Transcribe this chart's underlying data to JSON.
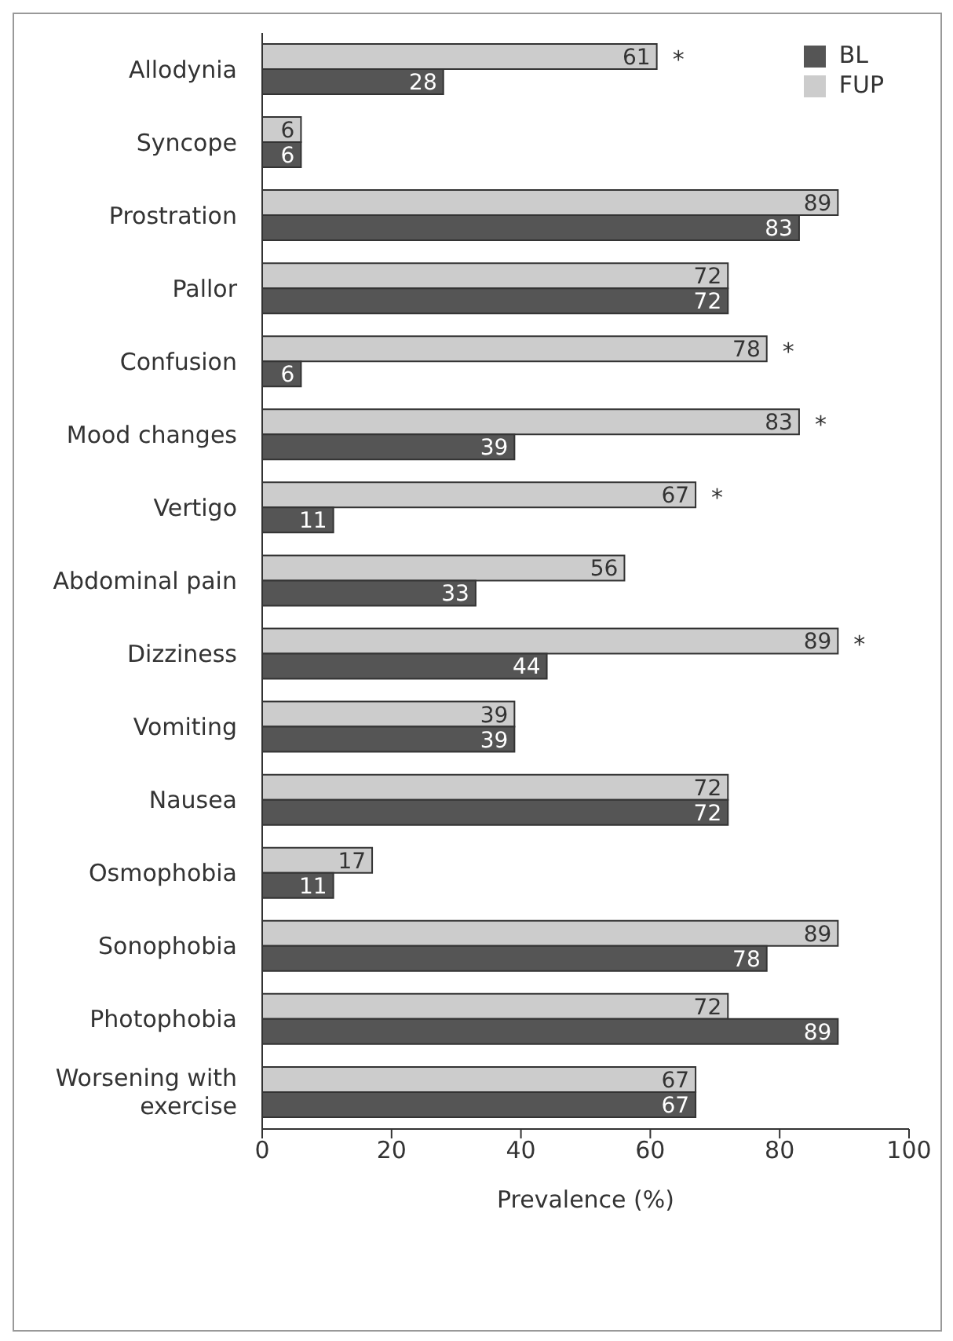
{
  "chart_data": {
    "type": "bar",
    "orientation": "horizontal",
    "xlabel": "Prevalence (%)",
    "categories": [
      "Allodynia",
      "Syncope",
      "Prostration",
      "Pallor",
      "Confusion",
      "Mood changes",
      "Vertigo",
      "Abdominal pain",
      "Dizziness",
      "Vomiting",
      "Nausea",
      "Osmophobia",
      "Sonophobia",
      "Photophobia",
      "Worsening with exercise"
    ],
    "series": [
      {
        "name": "FUP",
        "color": "#cccccc",
        "values": [
          61,
          6,
          89,
          72,
          78,
          83,
          67,
          56,
          89,
          39,
          72,
          17,
          89,
          72,
          67
        ]
      },
      {
        "name": "BL",
        "color": "#555555",
        "values": [
          28,
          6,
          83,
          72,
          6,
          39,
          11,
          33,
          44,
          39,
          72,
          11,
          78,
          89,
          67
        ]
      }
    ],
    "xlim": [
      0,
      100
    ],
    "xticks": [
      0,
      20,
      40,
      60,
      80,
      100
    ],
    "grid": false,
    "legend": "top right",
    "data_labels": true,
    "annotations": [
      {
        "text": "*",
        "x": 61,
        "y": "Allodynia"
      },
      {
        "text": "*",
        "x": 78,
        "y": "Confusion"
      },
      {
        "text": "*",
        "x": 83,
        "y": "Mood changes"
      },
      {
        "text": "*",
        "x": 67,
        "y": "Vertigo"
      },
      {
        "text": "*",
        "x": 89,
        "y": "Dizziness"
      }
    ]
  }
}
